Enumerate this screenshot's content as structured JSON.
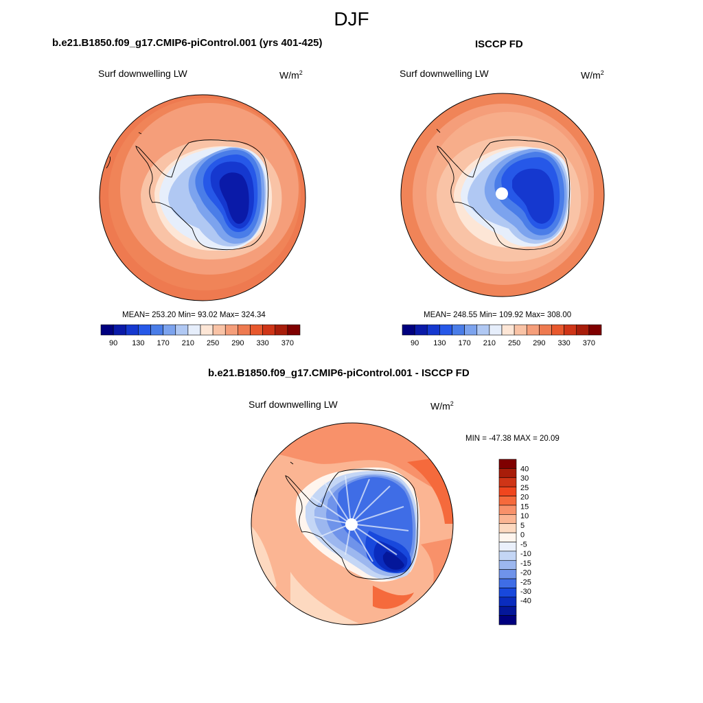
{
  "figure": {
    "title": "DJF"
  },
  "panels": [
    {
      "title": "b.e21.B1850.f09_g17.CMIP6-piControl.001 (yrs 401-425)",
      "variable": "Surf downwelling LW",
      "units_base": "W/m",
      "units_exp": "2",
      "stats": "MEAN= 253.20  Min=  93.02  Max= 324.34",
      "has_pole_hole": false
    },
    {
      "title": "ISCCP FD",
      "variable": "Surf downwelling LW",
      "units_base": "W/m",
      "units_exp": "2",
      "stats": "MEAN= 248.55  Min= 109.92  Max= 308.00",
      "has_pole_hole": true
    },
    {
      "title": "b.e21.B1850.f09_g17.CMIP6-piControl.001 - ISCCP FD",
      "variable": "Surf downwelling LW",
      "units_base": "W/m",
      "units_exp": "2",
      "stats": "MIN = -47.38 MAX =  20.09",
      "has_pole_hole": true
    }
  ],
  "colorbars": {
    "absolute": {
      "colors": [
        "#00007f",
        "#0a1aa8",
        "#1538cf",
        "#2658e8",
        "#4a7de8",
        "#7ca3ee",
        "#b0c8f3",
        "#e6eefb",
        "#fde6d6",
        "#f9c3a6",
        "#f59e7a",
        "#ee7a50",
        "#e8582d",
        "#cf3517",
        "#a81d0a",
        "#7f0000"
      ],
      "labels": [
        "90",
        "130",
        "170",
        "210",
        "250",
        "290",
        "330",
        "370"
      ]
    },
    "difference": {
      "colors": [
        "#7f0000",
        "#a81d0a",
        "#cf3517",
        "#f0461e",
        "#f56a3c",
        "#f8916a",
        "#fbb593",
        "#fdd9c0",
        "#fff5ee",
        "#eaf0fb",
        "#c4d6f5",
        "#9cb7ef",
        "#6f93ea",
        "#3f6de6",
        "#1848dc",
        "#0a2cbe",
        "#04179a",
        "#00007f"
      ],
      "labels": [
        "40",
        "30",
        "25",
        "20",
        "15",
        "10",
        "5",
        "0",
        "-5",
        "-10",
        "-15",
        "-20",
        "-25",
        "-30",
        "-40"
      ]
    }
  }
}
